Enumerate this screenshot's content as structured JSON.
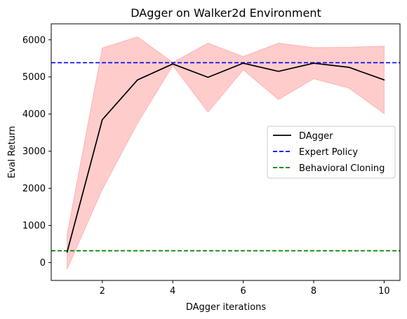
{
  "chart_data": {
    "type": "line",
    "title": "DAgger on Walker2d Environment",
    "xlabel": "DAgger iterations",
    "ylabel": "Eval Return",
    "xlim": [
      0.55,
      10.45
    ],
    "ylim": [
      -480,
      6430
    ],
    "x_ticks": [
      2,
      4,
      6,
      8,
      10
    ],
    "y_ticks": [
      0,
      1000,
      2000,
      3000,
      4000,
      5000,
      6000
    ],
    "grid": false,
    "legend_position": "center-right",
    "series": [
      {
        "name": "DAgger",
        "style": "solid",
        "color": "#000000",
        "x": [
          1,
          2,
          3,
          4,
          5,
          6,
          7,
          8,
          9,
          10
        ],
        "y": [
          280,
          3850,
          4920,
          5350,
          4990,
          5370,
          5150,
          5370,
          5260,
          4920
        ],
        "band_upper": [
          760,
          5780,
          6080,
          5390,
          5910,
          5550,
          5910,
          5790,
          5800,
          5830
        ],
        "band_lower": [
          -180,
          1970,
          3750,
          5310,
          4050,
          5190,
          4390,
          4950,
          4700,
          4010
        ],
        "band_color": "#ff0000"
      },
      {
        "name": "Expert Policy",
        "style": "dashed",
        "color": "#0000ff",
        "hline": 5383
      },
      {
        "name": "Behavioral Cloning",
        "style": "dashed",
        "color": "#008000",
        "hline": 320
      }
    ]
  }
}
